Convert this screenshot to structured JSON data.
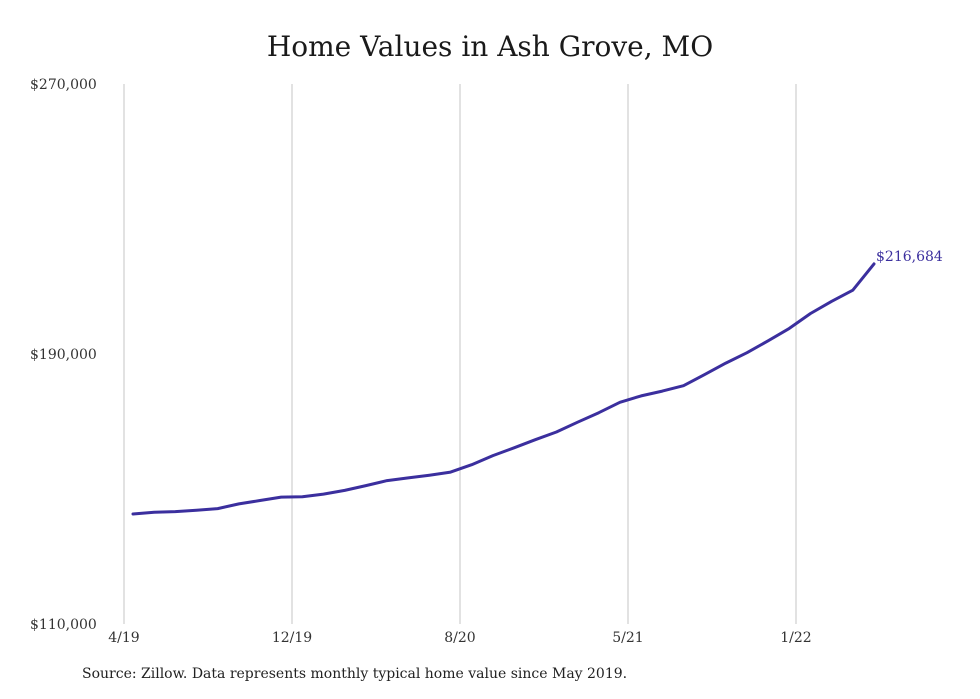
{
  "chart_data": {
    "type": "line",
    "title": "Home Values in Ash Grove, MO",
    "xlabel": "",
    "ylabel": "",
    "ylim": [
      110000,
      270000
    ],
    "y_ticks": [
      "$270,000",
      "$190,000",
      "$110,000"
    ],
    "y_tick_values": [
      270000,
      190000,
      110000
    ],
    "x_ticks": [
      "4/19",
      "12/19",
      "8/20",
      "5/21",
      "1/22"
    ],
    "grid": "vertical",
    "series": [
      {
        "color": "#3b2f9e",
        "x": [
          "2019-05",
          "2019-06",
          "2019-07",
          "2019-08",
          "2019-09",
          "2019-10",
          "2019-11",
          "2019-12",
          "2020-01",
          "2020-02",
          "2020-03",
          "2020-04",
          "2020-05",
          "2020-06",
          "2020-07",
          "2020-08",
          "2020-09",
          "2020-10",
          "2020-11",
          "2020-12",
          "2021-01",
          "2021-02",
          "2021-03",
          "2021-04",
          "2021-05",
          "2021-06",
          "2021-07",
          "2021-08",
          "2021-09",
          "2021-10",
          "2021-11",
          "2021-12",
          "2022-01",
          "2022-02",
          "2022-03",
          "2022-04"
        ],
        "values": [
          142600,
          143100,
          143300,
          143700,
          144200,
          145600,
          146600,
          147600,
          147700,
          148500,
          149600,
          151000,
          152500,
          153300,
          154100,
          155000,
          157200,
          159900,
          162200,
          164600,
          166900,
          169800,
          172600,
          175700,
          177600,
          179000,
          180600,
          183900,
          187300,
          190400,
          193900,
          197600,
          202000,
          205600,
          208900,
          216684
        ]
      }
    ],
    "annotations": [
      {
        "text": "$216,684"
      }
    ]
  },
  "footer": {
    "source": "Source: Zillow. Data represents monthly typical home value since May 2019."
  }
}
